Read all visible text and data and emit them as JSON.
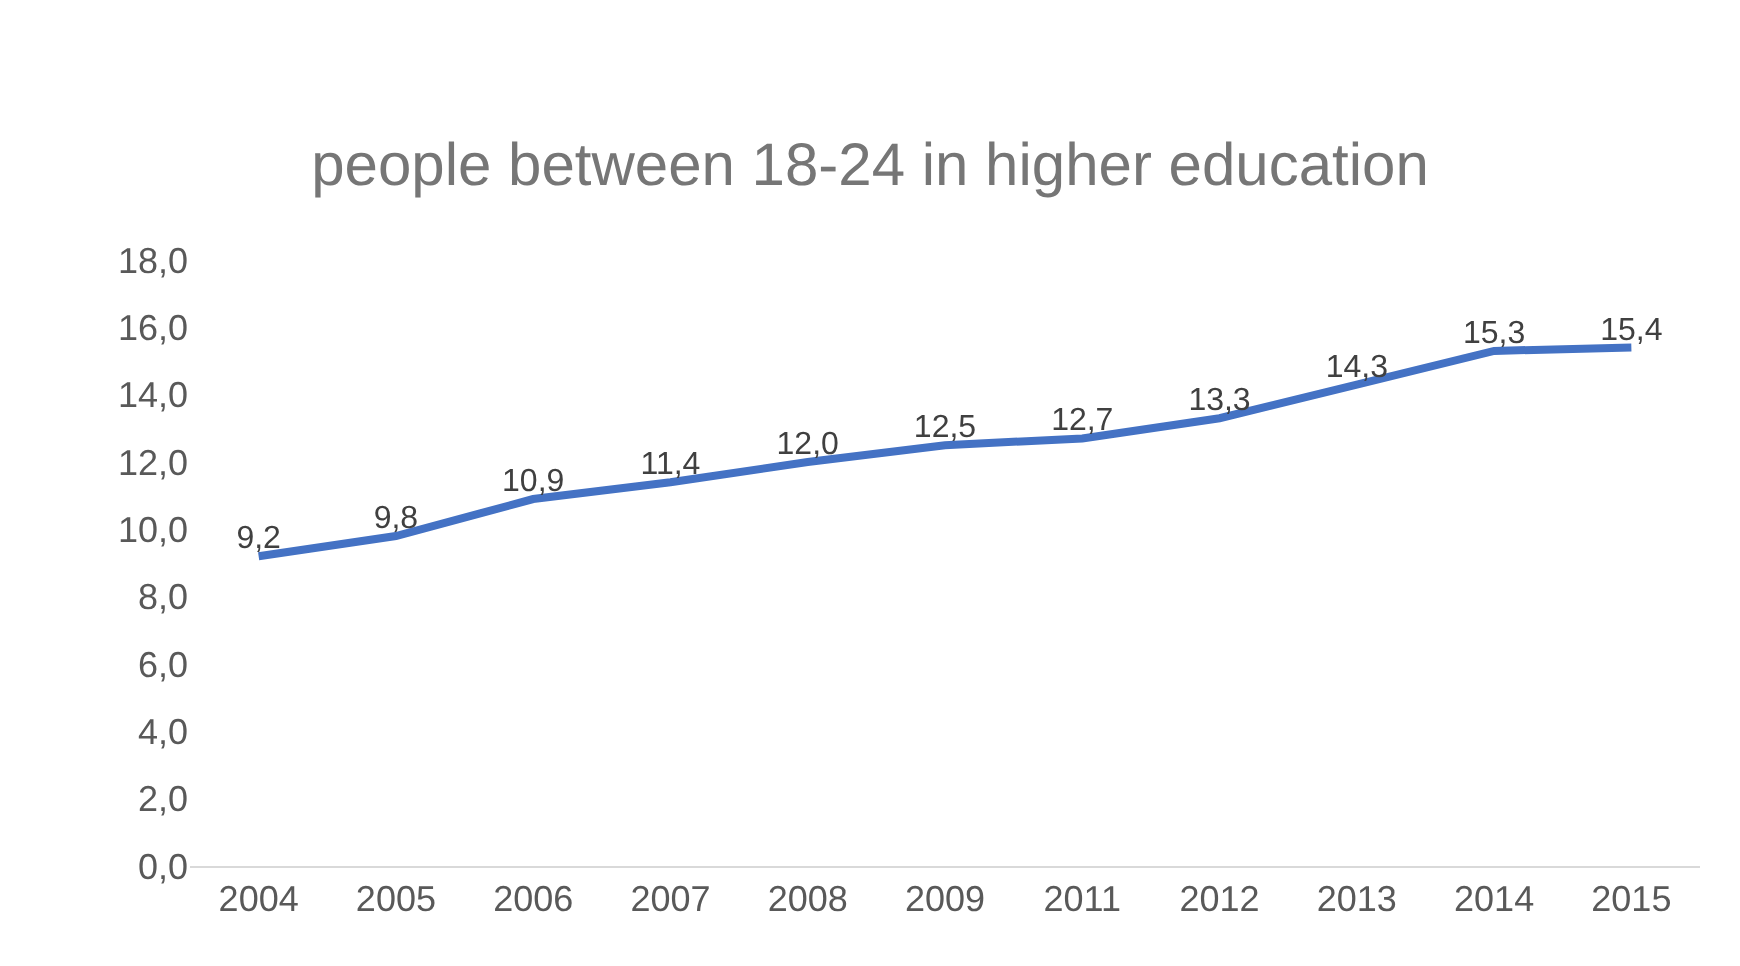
{
  "chart_data": {
    "type": "line",
    "title": "people between 18-24 in higher education",
    "categories": [
      "2004",
      "2005",
      "2006",
      "2007",
      "2008",
      "2009",
      "2011",
      "2012",
      "2013",
      "2014",
      "2015"
    ],
    "series": [
      {
        "color": "#4472c4",
        "values": [
          9.2,
          9.8,
          10.9,
          11.4,
          12.0,
          12.5,
          12.7,
          13.3,
          14.3,
          15.3,
          15.4
        ],
        "value_labels": [
          "9,2",
          "9,8",
          "10,9",
          "11,4",
          "12,0",
          "12,5",
          "12,7",
          "13,3",
          "14,3",
          "15,3",
          "15,4"
        ]
      }
    ],
    "ylim": [
      0,
      18
    ],
    "yticks": [
      {
        "value": 0,
        "label": "0,0"
      },
      {
        "value": 2,
        "label": "2,0"
      },
      {
        "value": 4,
        "label": "4,0"
      },
      {
        "value": 6,
        "label": "6,0"
      },
      {
        "value": 8,
        "label": "8,0"
      },
      {
        "value": 10,
        "label": "10,0"
      },
      {
        "value": 12,
        "label": "12,0"
      },
      {
        "value": 14,
        "label": "14,0"
      },
      {
        "value": 16,
        "label": "16,0"
      },
      {
        "value": 18,
        "label": "18,0"
      }
    ],
    "grid": false,
    "marker": "none",
    "line_style": "solid"
  }
}
